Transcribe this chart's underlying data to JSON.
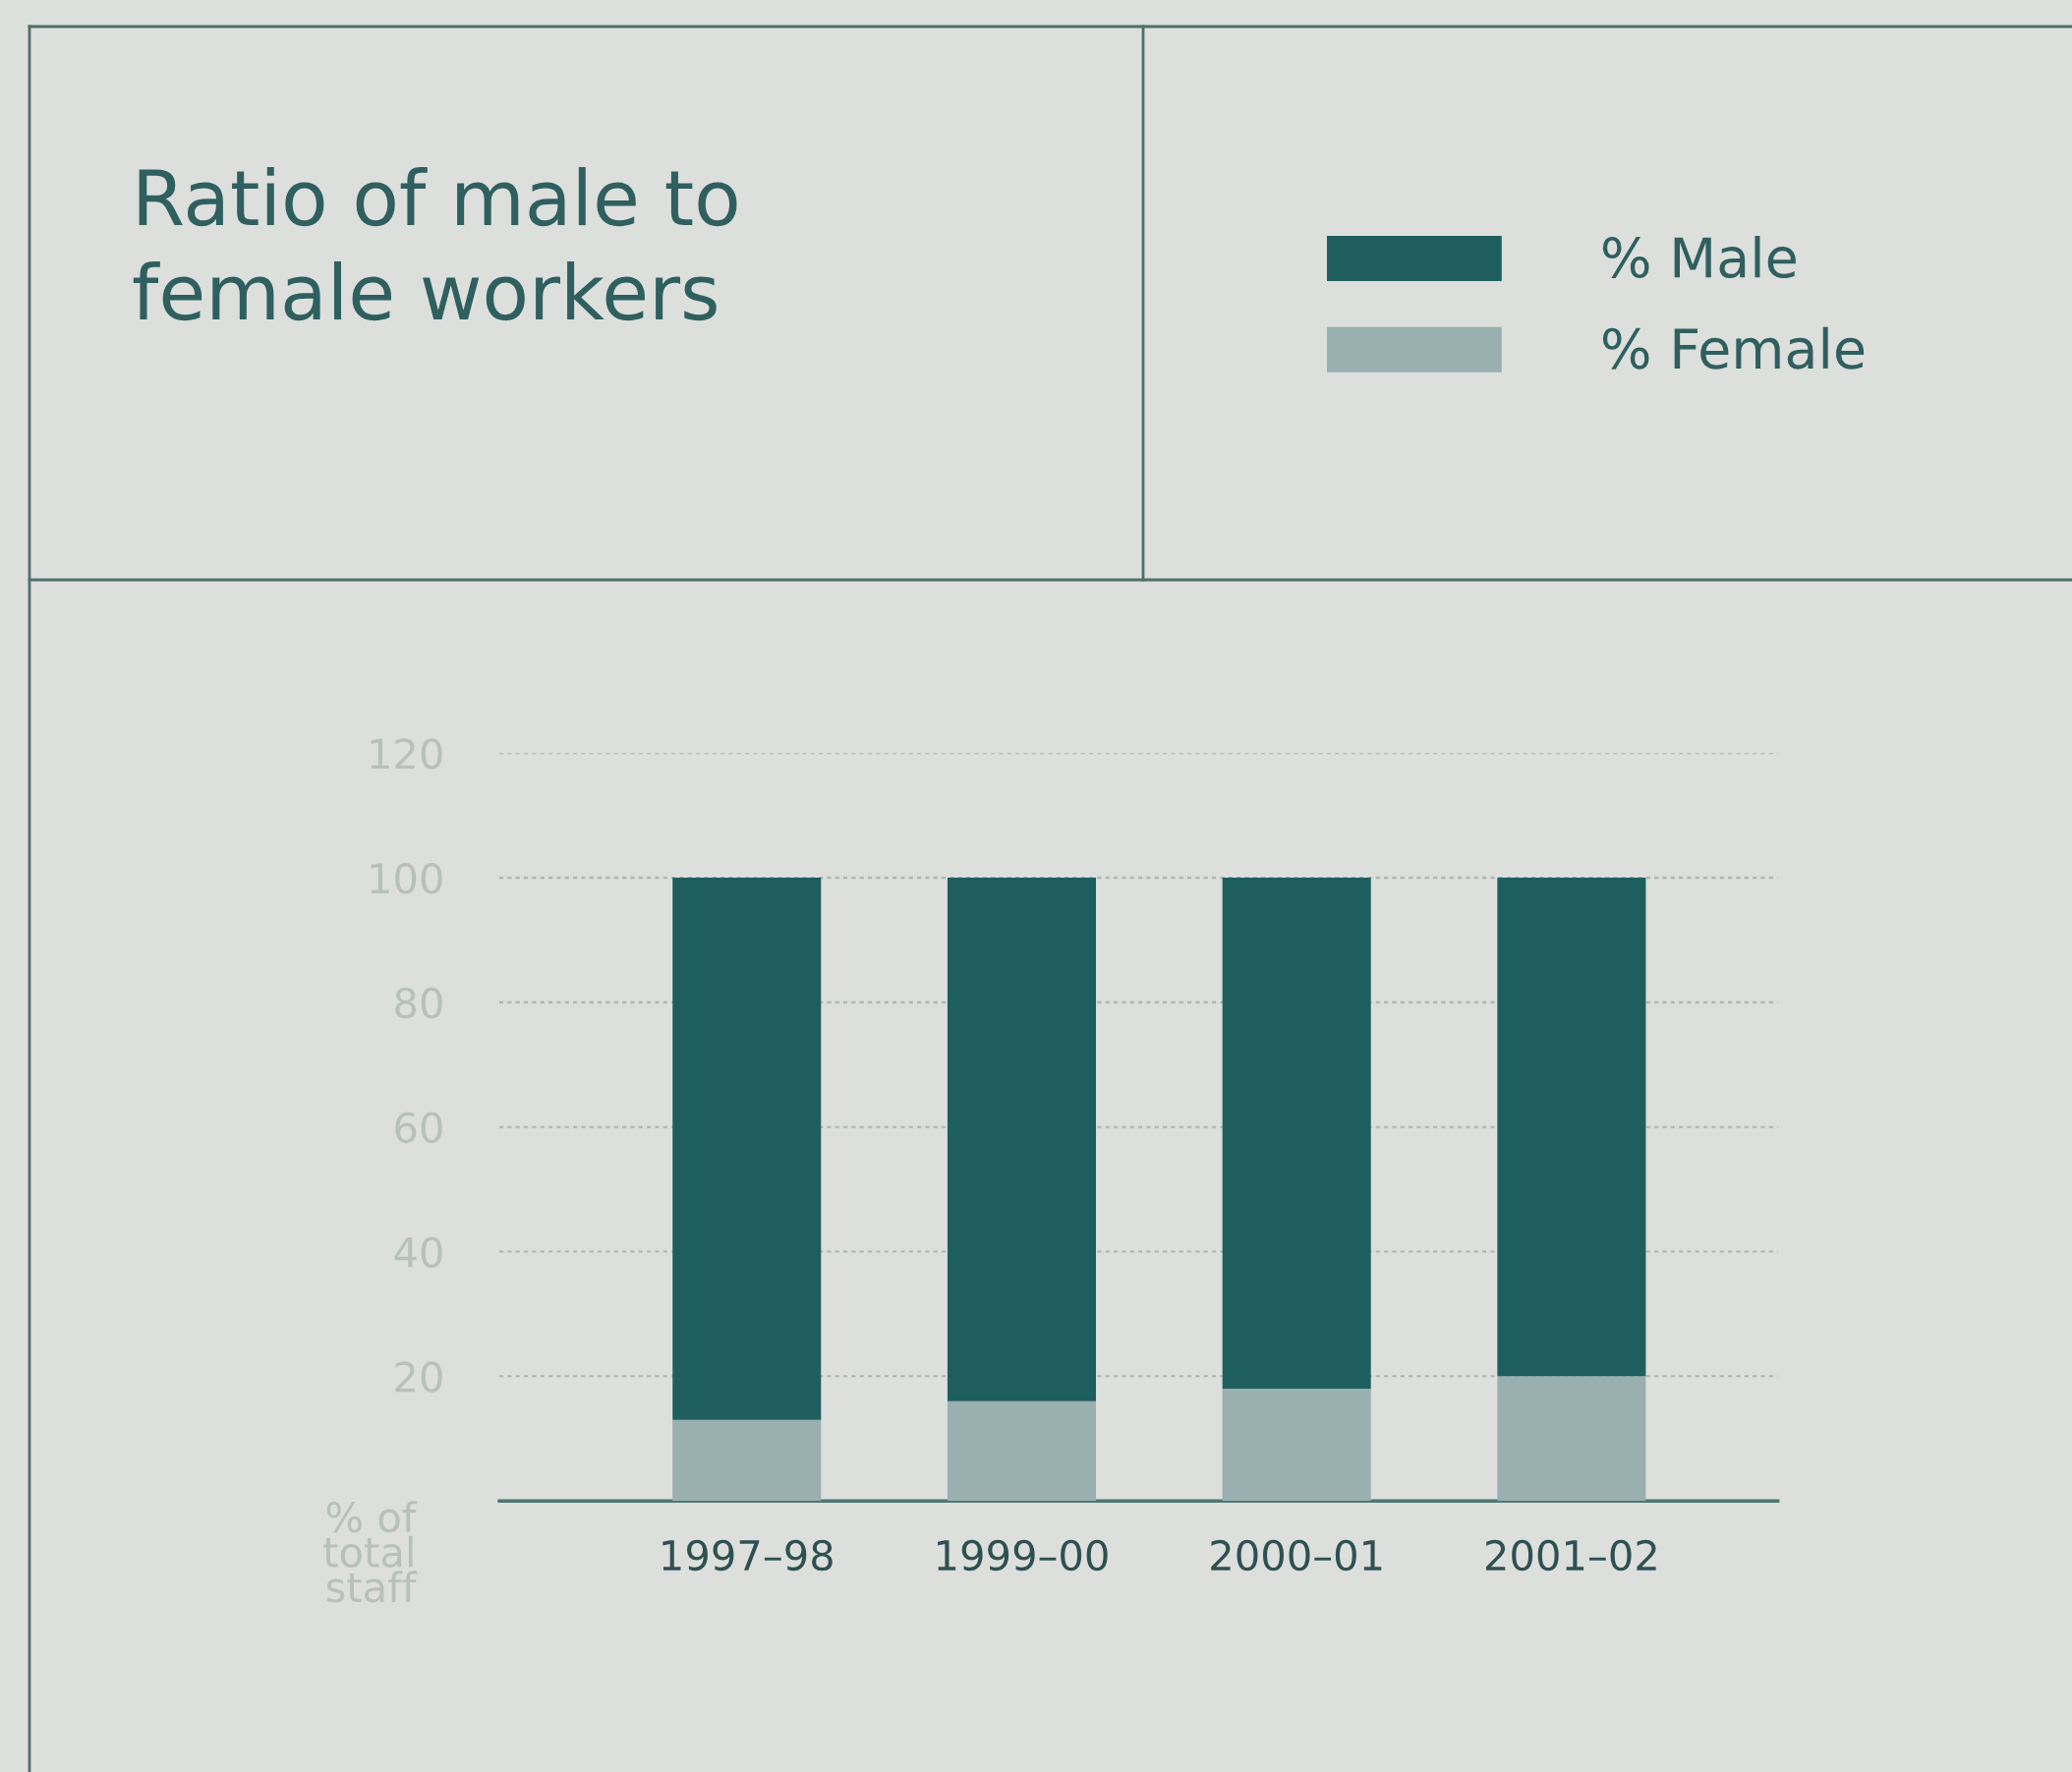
{
  "chart_data": {
    "type": "bar",
    "title": "Ratio of male to\nfemale workers",
    "ylabel": "% of\ntotal\nstaff",
    "categories": [
      "1997–98",
      "1999–00",
      "2000–01",
      "2001–02"
    ],
    "series": [
      {
        "name": "% Female",
        "color": "#9aafaf",
        "values": [
          13,
          16,
          18,
          20
        ]
      },
      {
        "name": "% Male",
        "color": "#1f5e5e",
        "values": [
          87,
          84,
          82,
          80
        ]
      }
    ],
    "stacked": true,
    "ylim": [
      0,
      120
    ],
    "yticks": [
      20,
      40,
      60,
      80,
      100,
      120
    ],
    "grid": "y",
    "legend": "top right"
  }
}
